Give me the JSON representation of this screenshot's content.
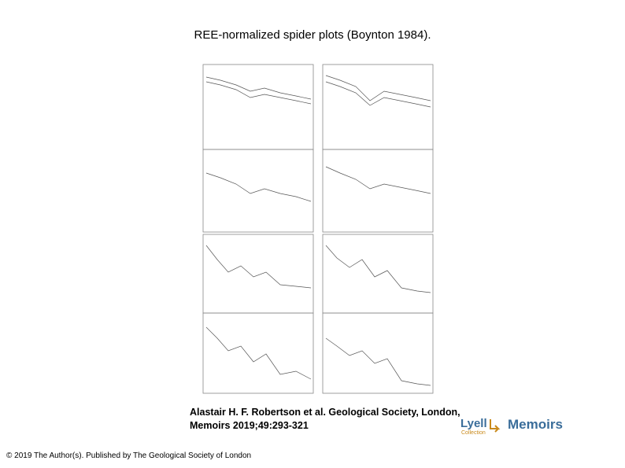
{
  "slide": {
    "title": "REE-normalized spider plots (Boynton 1984).",
    "caption": [
      "Alastair H. F. Robertson et al. Geological Society, London,",
      "Memoirs 2019;49:293-321"
    ],
    "copyright": "© 2019 The Author(s). Published by The Geological Society of London",
    "logo": {
      "left": "Lyell",
      "left_sub": "Collection",
      "right": "Memoirs"
    }
  }
}
